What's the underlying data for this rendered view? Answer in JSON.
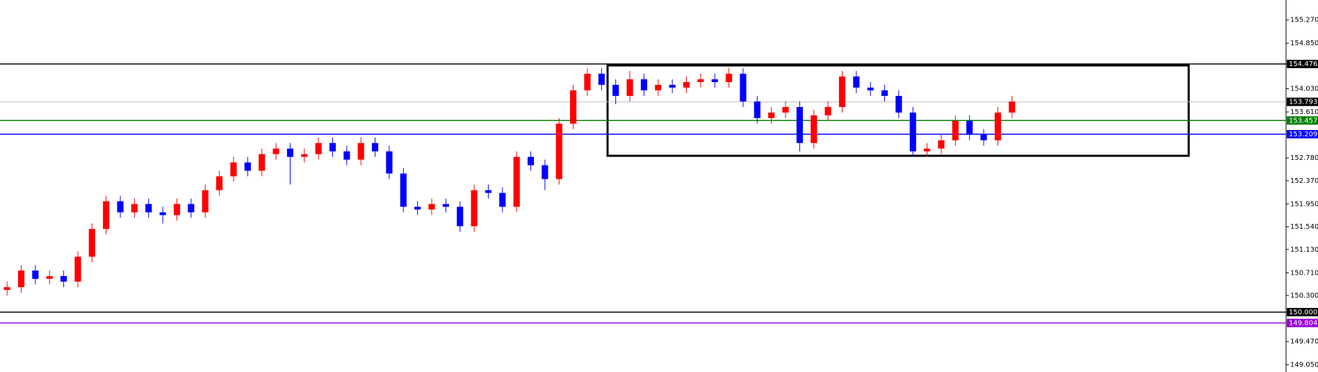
{
  "chart_data": {
    "type": "candlestick",
    "ylim": [
      148.92,
      155.63
    ],
    "yticks": [
      {
        "value": 155.27,
        "label": "155.270"
      },
      {
        "value": 154.85,
        "label": "154.850"
      },
      {
        "value": 154.03,
        "label": "154.030"
      },
      {
        "value": 153.61,
        "label": "153.610"
      },
      {
        "value": 152.78,
        "label": "152.780"
      },
      {
        "value": 152.37,
        "label": "152.370"
      },
      {
        "value": 151.95,
        "label": "151.950"
      },
      {
        "value": 151.54,
        "label": "151.540"
      },
      {
        "value": 151.13,
        "label": "151.130"
      },
      {
        "value": 150.71,
        "label": "150.710"
      },
      {
        "value": 150.3,
        "label": "150.300"
      },
      {
        "value": 149.47,
        "label": "149.470"
      },
      {
        "value": 149.05,
        "label": "149.050"
      }
    ],
    "levels": [
      {
        "value": 154.476,
        "label": "154.476",
        "color": "#000000"
      },
      {
        "value": 153.793,
        "label": "153.793",
        "color": "#c0c0c0"
      },
      {
        "value": 153.457,
        "label": "153.457",
        "color": "#008000"
      },
      {
        "value": 153.209,
        "label": "153.209",
        "color": "#0000ff"
      },
      {
        "value": 150.0,
        "label": "150.000",
        "color": "#000000"
      },
      {
        "value": 149.804,
        "label": "149.804",
        "color": "#9400d3"
      }
    ],
    "box": {
      "top": 154.45,
      "bottom": 152.82
    },
    "up_color": "#ff0000",
    "down_color": "#0000ff",
    "open": [
      150.4,
      150.45,
      150.75,
      150.6,
      150.65,
      150.55,
      151.0,
      151.5,
      152.0,
      151.8,
      151.95,
      151.8,
      151.75,
      151.95,
      151.8,
      152.2,
      152.45,
      152.7,
      152.55,
      152.85,
      152.95,
      152.8,
      152.85,
      153.05,
      152.9,
      152.75,
      153.05,
      152.9,
      152.5,
      151.9,
      151.85,
      151.95,
      151.9,
      151.55,
      152.2,
      152.15,
      151.9,
      152.8,
      152.65,
      152.4,
      153.4,
      154.0,
      154.3,
      154.1,
      153.9,
      154.2,
      154.0,
      154.1,
      154.05,
      154.15,
      154.2,
      154.15,
      154.3,
      153.8,
      153.5,
      153.6,
      153.7,
      153.05,
      153.55,
      153.7,
      154.25,
      154.05,
      154.0,
      153.9,
      153.6,
      152.9,
      152.95,
      153.1,
      153.45,
      153.2,
      153.1,
      153.6
    ],
    "high": [
      150.55,
      150.85,
      150.85,
      150.75,
      150.75,
      151.1,
      151.6,
      152.1,
      152.1,
      152.05,
      152.05,
      151.9,
      152.05,
      152.05,
      152.3,
      152.55,
      152.8,
      152.8,
      152.95,
      153.05,
      153.05,
      152.95,
      153.15,
      153.15,
      153.0,
      153.15,
      153.15,
      153.0,
      152.6,
      152.0,
      152.05,
      152.05,
      152.0,
      152.3,
      152.3,
      152.25,
      152.9,
      152.9,
      152.75,
      153.5,
      154.1,
      154.4,
      154.4,
      154.2,
      154.35,
      154.3,
      154.2,
      154.2,
      154.25,
      154.3,
      154.3,
      154.4,
      154.4,
      153.9,
      153.7,
      153.8,
      153.8,
      153.65,
      153.8,
      154.35,
      154.35,
      154.15,
      154.1,
      154.0,
      153.7,
      153.05,
      153.2,
      153.55,
      153.55,
      153.3,
      153.7,
      153.9
    ],
    "low": [
      150.3,
      150.35,
      150.5,
      150.5,
      150.45,
      150.45,
      150.9,
      151.4,
      151.7,
      151.7,
      151.7,
      151.6,
      151.65,
      151.7,
      151.7,
      152.1,
      152.35,
      152.45,
      152.45,
      152.75,
      152.3,
      152.7,
      152.75,
      152.8,
      152.65,
      152.65,
      152.8,
      152.4,
      151.8,
      151.75,
      151.75,
      151.8,
      151.45,
      151.45,
      152.05,
      151.8,
      151.8,
      152.55,
      152.2,
      152.3,
      153.3,
      153.9,
      154.0,
      153.75,
      153.8,
      153.9,
      153.9,
      153.95,
      153.95,
      154.05,
      154.05,
      154.05,
      153.7,
      153.4,
      153.4,
      153.5,
      152.9,
      152.95,
      153.45,
      153.6,
      153.95,
      153.9,
      153.8,
      153.5,
      152.8,
      152.8,
      152.85,
      153.0,
      153.1,
      153.0,
      153.0,
      153.5
    ],
    "close": [
      150.45,
      150.75,
      150.6,
      150.65,
      150.55,
      151.0,
      151.5,
      152.0,
      151.8,
      151.95,
      151.8,
      151.75,
      151.95,
      151.8,
      152.2,
      152.45,
      152.7,
      152.55,
      152.85,
      152.95,
      152.8,
      152.85,
      153.05,
      152.9,
      152.75,
      153.05,
      152.9,
      152.5,
      151.9,
      151.85,
      151.95,
      151.9,
      151.55,
      152.2,
      152.15,
      151.9,
      152.8,
      152.65,
      152.4,
      153.4,
      154.0,
      154.3,
      154.1,
      153.9,
      154.2,
      154.0,
      154.1,
      154.05,
      154.15,
      154.2,
      154.15,
      154.3,
      153.8,
      153.5,
      153.6,
      153.7,
      153.05,
      153.55,
      153.7,
      154.25,
      154.05,
      154.0,
      153.9,
      153.6,
      152.9,
      152.95,
      153.1,
      153.45,
      153.2,
      153.1,
      153.6,
      153.8
    ]
  }
}
